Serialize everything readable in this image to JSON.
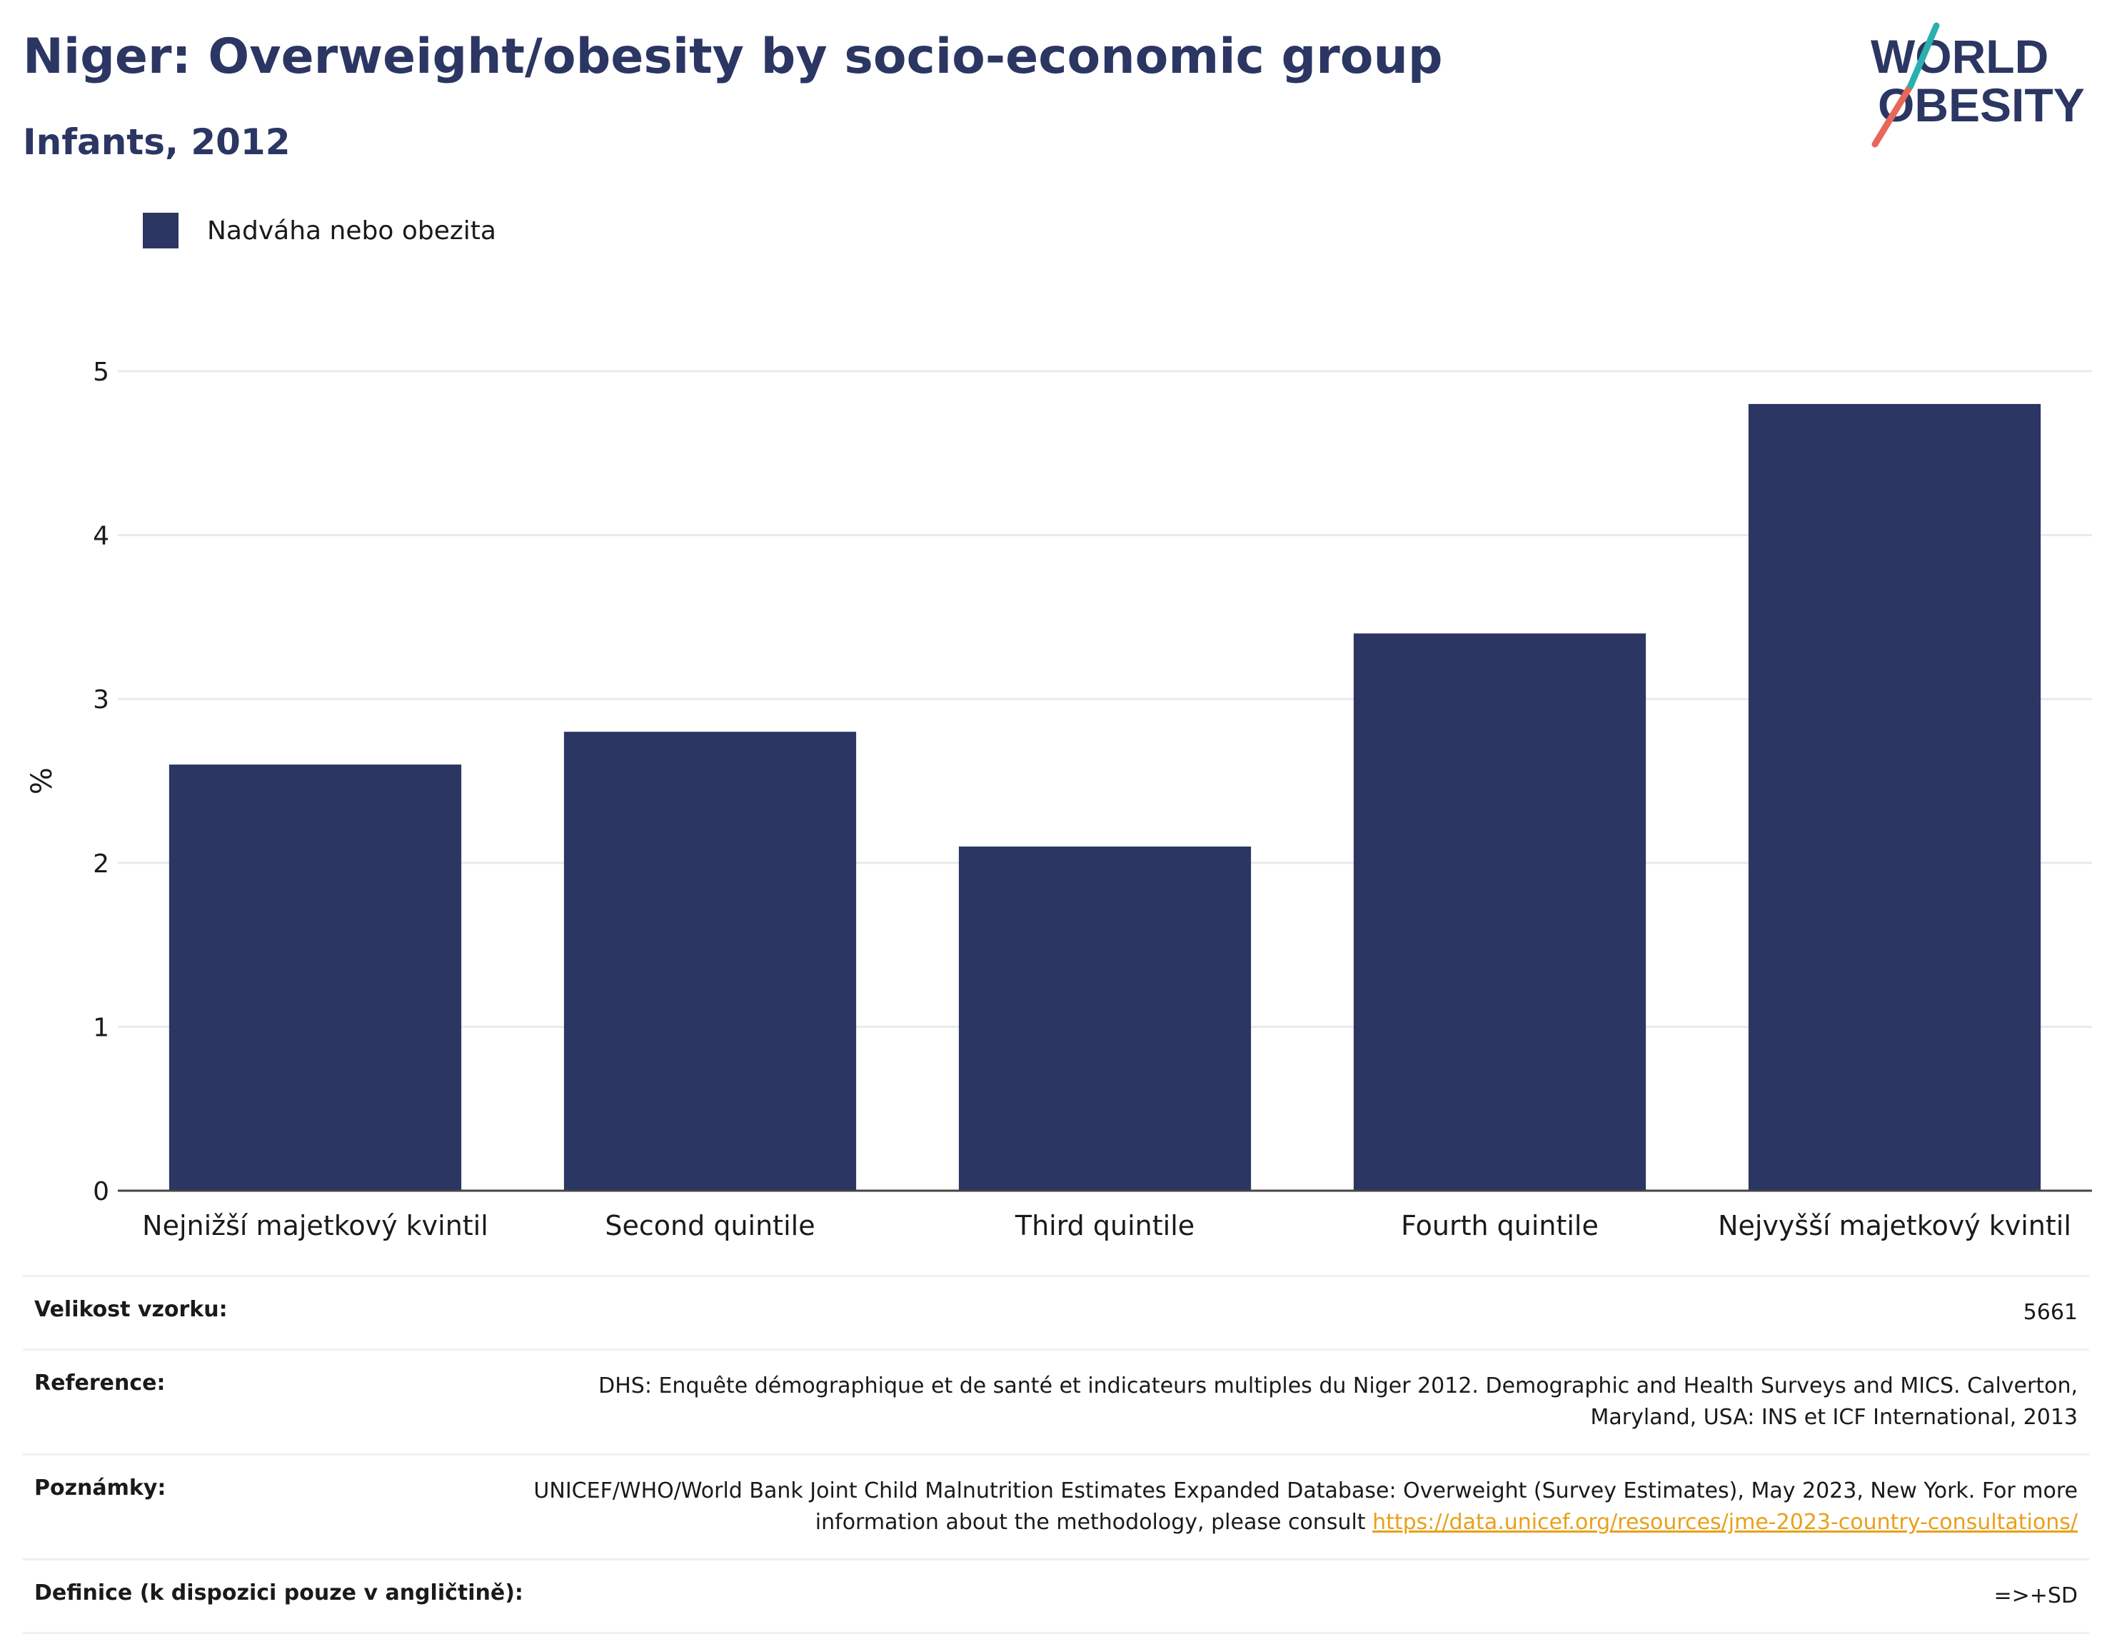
{
  "header": {
    "title": "Niger: Overweight/obesity by socio-economic group",
    "subtitle": "Infants, 2012"
  },
  "logo": {
    "line1": "WORLD",
    "line2": "OBESITY"
  },
  "colors": {
    "bar": "#2b3663",
    "title": "#2b3663",
    "link": "#e8a01a"
  },
  "chart_data": {
    "type": "bar",
    "categories": [
      "Nejnižší majetkový kvintil",
      "Second quintile",
      "Third quintile",
      "Fourth quintile",
      "Nejvyšší majetkový kvintil"
    ],
    "series": [
      {
        "name": "Nadváha nebo obezita",
        "values": [
          2.6,
          2.8,
          2.1,
          3.4,
          4.8
        ]
      }
    ],
    "ylabel": "%",
    "ylim": [
      0,
      5
    ],
    "yticks": [
      0,
      1,
      2,
      3,
      4,
      5
    ],
    "grid": true,
    "legend_position": "top-left"
  },
  "info": {
    "sample_label": "Velikost vzorku:",
    "sample_value": "5661",
    "reference_label": "Reference:",
    "reference_value": "DHS: Enquête démographique et de santé et indicateurs multiples du Niger 2012. Demographic and Health Surveys and MICS. Calverton, Maryland, USA: INS et ICF International, 2013",
    "notes_label": "Poznámky:",
    "notes_text": "UNICEF/WHO/World Bank Joint Child Malnutrition Estimates Expanded Database: Overweight (Survey Estimates), May 2023, New York. For more information about the methodology, please consult ",
    "notes_link": "https://data.unicef.org/resources/jme-2023-country-consultations/",
    "definition_label": "Definice (k dispozici pouze v angličtině):",
    "definition_value": "=>+SD"
  }
}
